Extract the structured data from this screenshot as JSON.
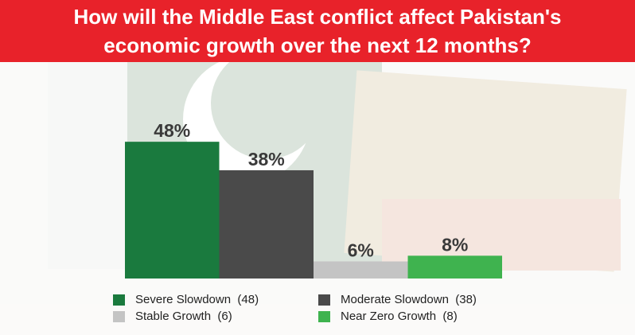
{
  "chart_data": {
    "type": "bar",
    "title": "How will the Middle East conflict affect Pakistan's economic growth over the next 12 months?",
    "series": [
      {
        "name": "Severe Slowdown  (48)",
        "color": "#1a7a3e",
        "values": [
          48
        ],
        "value_labels": [
          "48%"
        ]
      },
      {
        "name": "Moderate Slowdown  (38)",
        "color": "#4a4a4a",
        "values": [
          38
        ],
        "value_labels": [
          "38%"
        ]
      },
      {
        "name": "Stable Growth  (6)",
        "color": "#c4c4c4",
        "values": [
          6
        ],
        "value_labels": [
          "6%"
        ]
      },
      {
        "name": "Near Zero Growth  (8)",
        "color": "#3fb34f",
        "values": [
          8
        ],
        "value_labels": [
          "8%"
        ]
      }
    ]
  }
}
